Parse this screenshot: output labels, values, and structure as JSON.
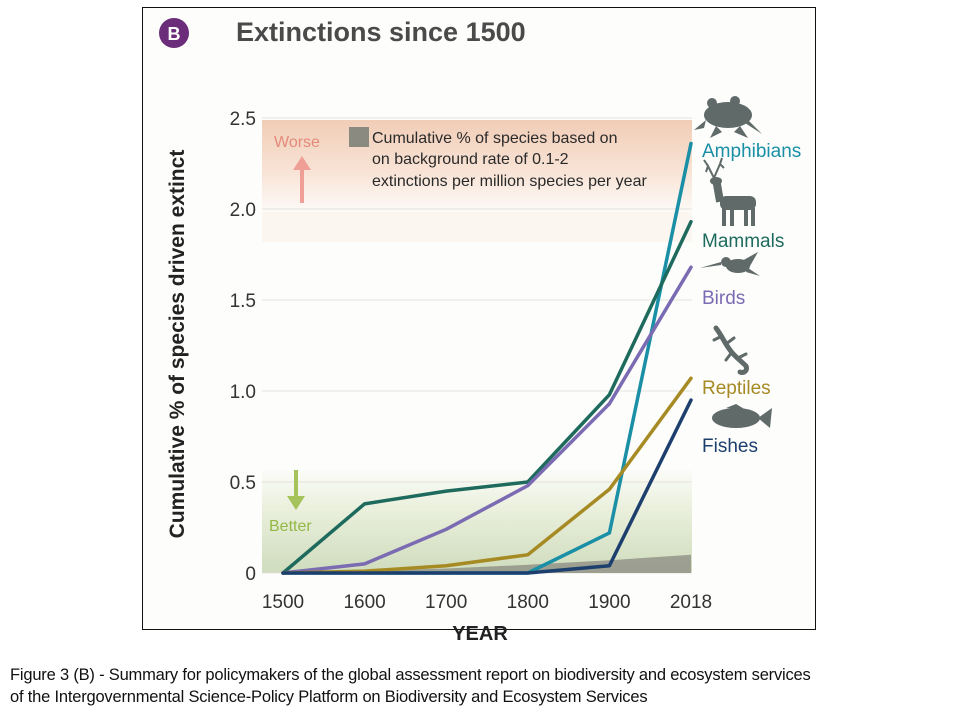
{
  "chart_data": {
    "type": "line",
    "panel_label": "B",
    "title": "Extinctions since 1500",
    "xlabel": "YEAR",
    "ylabel": "Cumulative % of species driven extinct",
    "x_tick_labels": [
      "1500",
      "1600",
      "1700",
      "1800",
      "1900",
      "2018"
    ],
    "x": [
      1500,
      1600,
      1700,
      1800,
      1900,
      2018
    ],
    "ylim": [
      0,
      2.5
    ],
    "y_ticks": [
      0,
      0.5,
      1.0,
      1.5,
      2.0,
      2.5
    ],
    "y_tick_labels": [
      "0",
      "0.5",
      "1.0",
      "1.5",
      "2.0",
      "2.5"
    ],
    "series": [
      {
        "name": "Amphibians",
        "color": "#1a8fa6",
        "icon": "frog-icon",
        "values": [
          0,
          0,
          0,
          0,
          0.22,
          2.36
        ]
      },
      {
        "name": "Mammals",
        "color": "#1e6b5e",
        "icon": "deer-icon",
        "values": [
          0,
          0.38,
          0.45,
          0.5,
          0.98,
          1.93
        ]
      },
      {
        "name": "Birds",
        "color": "#7b6bb3",
        "icon": "bird-icon",
        "values": [
          0,
          0.05,
          0.24,
          0.48,
          0.93,
          1.68
        ]
      },
      {
        "name": "Reptiles",
        "color": "#a68a24",
        "icon": "lizard-icon",
        "values": [
          0,
          0.01,
          0.04,
          0.1,
          0.46,
          1.07
        ]
      },
      {
        "name": "Fishes",
        "color": "#1d3f6e",
        "icon": "fish-icon",
        "values": [
          0,
          0,
          0,
          0,
          0.04,
          0.95
        ]
      }
    ],
    "background_rate": {
      "label_lines": [
        "Cumulative % of species based on",
        "on background rate of 0.1-2",
        "extinctions per million species per year"
      ],
      "color": "#8a8a80",
      "values": [
        0,
        0.012,
        0.025,
        0.045,
        0.07,
        0.1
      ]
    },
    "annotations": {
      "worse": "Worse",
      "better": "Better",
      "worse_color": "#e48a7a",
      "better_color": "#93b845"
    }
  },
  "caption": {
    "line1": "Figure 3 (B) - Summary for policymakers of the global assessment report on biodiversity and ecosystem services",
    "line2": "of the Intergovernmental Science-Policy Platform on Biodiversity and Ecosystem Services"
  }
}
